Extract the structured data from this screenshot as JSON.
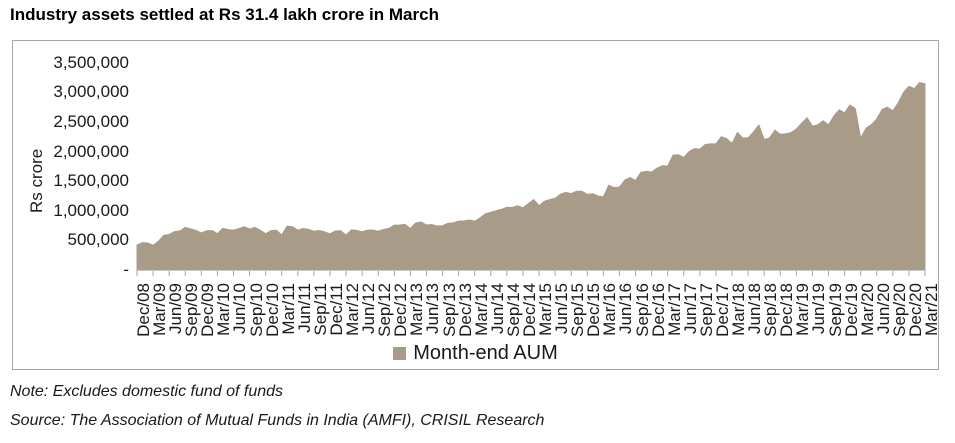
{
  "title": "Industry assets settled at Rs 31.4 lakh crore in March",
  "notes": {
    "note": "Note: Excludes domestic fund of funds",
    "source": "Source: The Association of Mutual Funds in India (AMFI), CRISIL Research"
  },
  "chart_data": {
    "type": "area",
    "title": "Industry assets settled at Rs 31.4 lakh crore in March",
    "xlabel": "",
    "ylabel": "Rs crore",
    "ylim": [
      0,
      3500000
    ],
    "grid": false,
    "legend_position": "bottom-center",
    "y_tick_labels": [
      "3,500,000",
      "3,000,000",
      "2,500,000",
      "2,000,000",
      "1,500,000",
      "1,000,000",
      "500,000",
      "-"
    ],
    "x_tick_labels": [
      "Dec/08",
      "Mar/09",
      "Jun/09",
      "Sep/09",
      "Dec/09",
      "Mar/10",
      "Jun/10",
      "Sep/10",
      "Dec/10",
      "Mar/11",
      "Jun/11",
      "Sep/11",
      "Dec/11",
      "Mar/12",
      "Jun/12",
      "Sep/12",
      "Dec/12",
      "Mar/13",
      "Jun/13",
      "Sep/13",
      "Dec/13",
      "Mar/14",
      "Jun/14",
      "Sep/14",
      "Dec/14",
      "Mar/15",
      "Jun/15",
      "Sep/15",
      "Dec/15",
      "Mar/16",
      "Jun/16",
      "Sep/16",
      "Dec/16",
      "Mar/17",
      "Jun/17",
      "Sep/17",
      "Dec/17",
      "Mar/18",
      "Jun/18",
      "Sep/18",
      "Dec/18",
      "Mar/19",
      "Jun/19",
      "Sep/19",
      "Dec/19",
      "Mar/20",
      "Jun/20",
      "Sep/20",
      "Dec/20",
      "Mar/21"
    ],
    "x_frequency": "monthly from Dec/08 to Mar/21 (148 points, quarterly tick labels)",
    "series": [
      {
        "name": "Month-end AUM",
        "values": [
          421000,
          462000,
          456000,
          417000,
          486000,
          585000,
          600000,
          648000,
          660000,
          719000,
          694000,
          669000,
          625000,
          662000,
          666000,
          614000,
          703000,
          682000,
          674000,
          699000,
          729000,
          692000,
          718000,
          670000,
          613000,
          665000,
          673000,
          592000,
          741000,
          730000,
          673000,
          701000,
          687000,
          655000,
          666000,
          645000,
          611000,
          659000,
          664000,
          587000,
          680000,
          669000,
          647000,
          674000,
          675000,
          655000,
          685000,
          702000,
          757000,
          760000,
          770000,
          701000,
          795000,
          810000,
          760000,
          768000,
          742000,
          747000,
          790000,
          795000,
          826000,
          830000,
          845000,
          825000,
          880000,
          950000,
          975000,
          1000000,
          1025000,
          1060000,
          1055000,
          1085000,
          1050000,
          1120000,
          1190000,
          1085000,
          1160000,
          1190000,
          1210000,
          1280000,
          1310000,
          1290000,
          1330000,
          1330000,
          1275000,
          1290000,
          1250000,
          1235000,
          1430000,
          1390000,
          1400000,
          1520000,
          1560000,
          1510000,
          1650000,
          1665000,
          1655000,
          1720000,
          1760000,
          1755000,
          1940000,
          1945000,
          1900000,
          2000000,
          2050000,
          2040000,
          2120000,
          2130000,
          2130000,
          2250000,
          2220000,
          2136000,
          2320000,
          2230000,
          2230000,
          2330000,
          2450000,
          2204000,
          2230000,
          2360000,
          2290000,
          2300000,
          2320000,
          2380000,
          2480000,
          2570000,
          2430000,
          2450000,
          2520000,
          2450000,
          2600000,
          2705000,
          2654000,
          2786000,
          2723000,
          2226000,
          2393000,
          2455000,
          2549000,
          2712000,
          2749000,
          2686000,
          2823000,
          3001000,
          3101000,
          3062000,
          3164000,
          3143000
        ]
      }
    ],
    "colors": {
      "area": "#A89B87",
      "axis": "#A6A6A6",
      "border": "#A6A6A6",
      "text": "#1A1A1A"
    }
  }
}
